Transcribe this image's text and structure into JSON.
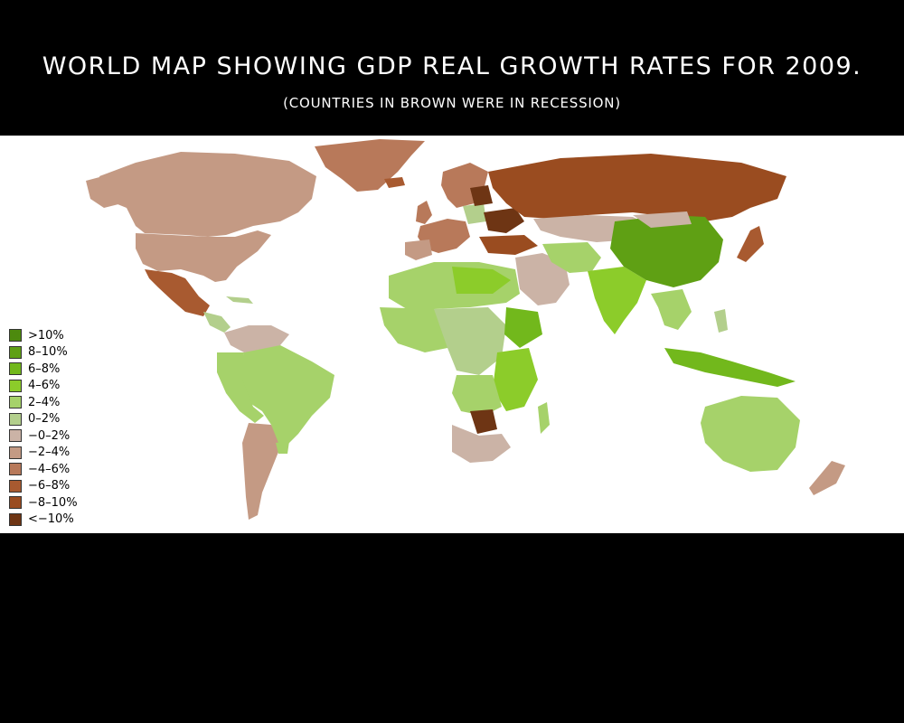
{
  "title": "WORLD MAP SHOWING GDP REAL GROWTH RATES FOR 2009.",
  "subtitle": "(COUNTRIES IN BROWN WERE IN RECESSION)",
  "legend": [
    {
      "label": ">10%",
      "color": "#4d8a0e"
    },
    {
      "label": "8–10%",
      "color": "#5fa014"
    },
    {
      "label": "6–8%",
      "color": "#72b81c"
    },
    {
      "label": "4–6%",
      "color": "#8ccc2a"
    },
    {
      "label": "2–4%",
      "color": "#a6d26a"
    },
    {
      "label": "0–2%",
      "color": "#b3cf8c"
    },
    {
      "label": "−0–2%",
      "color": "#cbb3a6"
    },
    {
      "label": "−2–4%",
      "color": "#c49a84"
    },
    {
      "label": "−4–6%",
      "color": "#b8795a"
    },
    {
      "label": "−6–8%",
      "color": "#a85a30"
    },
    {
      "label": "−8–10%",
      "color": "#9a4c20"
    },
    {
      "label": "<−10%",
      "color": "#6e3514"
    }
  ]
}
